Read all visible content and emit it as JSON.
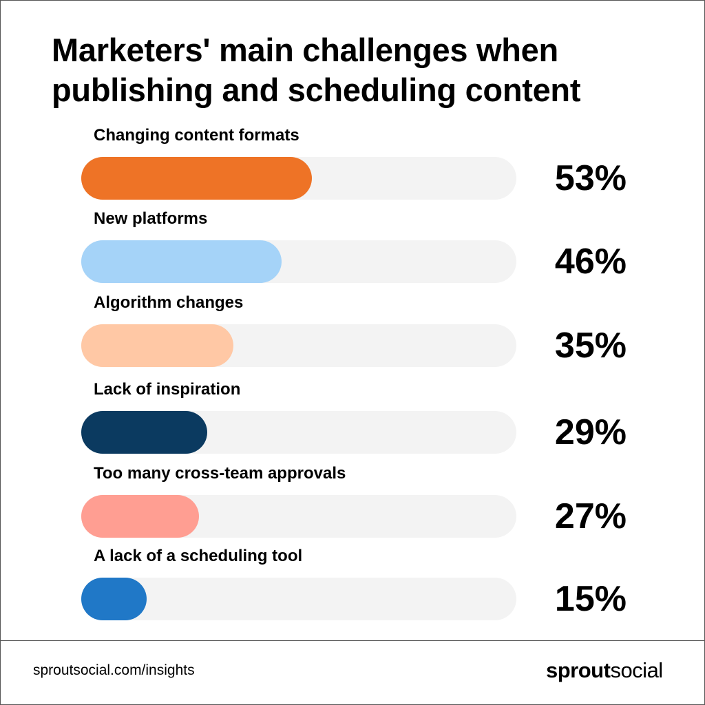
{
  "chart_data": {
    "type": "bar",
    "orientation": "horizontal",
    "title": "Marketers' main challenges when publishing and scheduling content",
    "categories": [
      "Changing content formats",
      "New platforms",
      "Algorithm changes",
      "Lack of inspiration",
      "Too many cross-team approvals",
      "A lack of a scheduling tool"
    ],
    "values": [
      53,
      46,
      35,
      29,
      27,
      15
    ],
    "value_labels": [
      "53%",
      "46%",
      "35%",
      "29%",
      "27%",
      "15%"
    ],
    "colors": [
      "#ee7326",
      "#a5d3f8",
      "#ffc8a5",
      "#0b3a60",
      "#ff9e92",
      "#2078c7"
    ],
    "track_color": "#f3f3f3",
    "xlim": [
      0,
      100
    ]
  },
  "footer": {
    "source": "sproutsocial.com/insights",
    "brand": [
      "sprout",
      "social"
    ]
  }
}
